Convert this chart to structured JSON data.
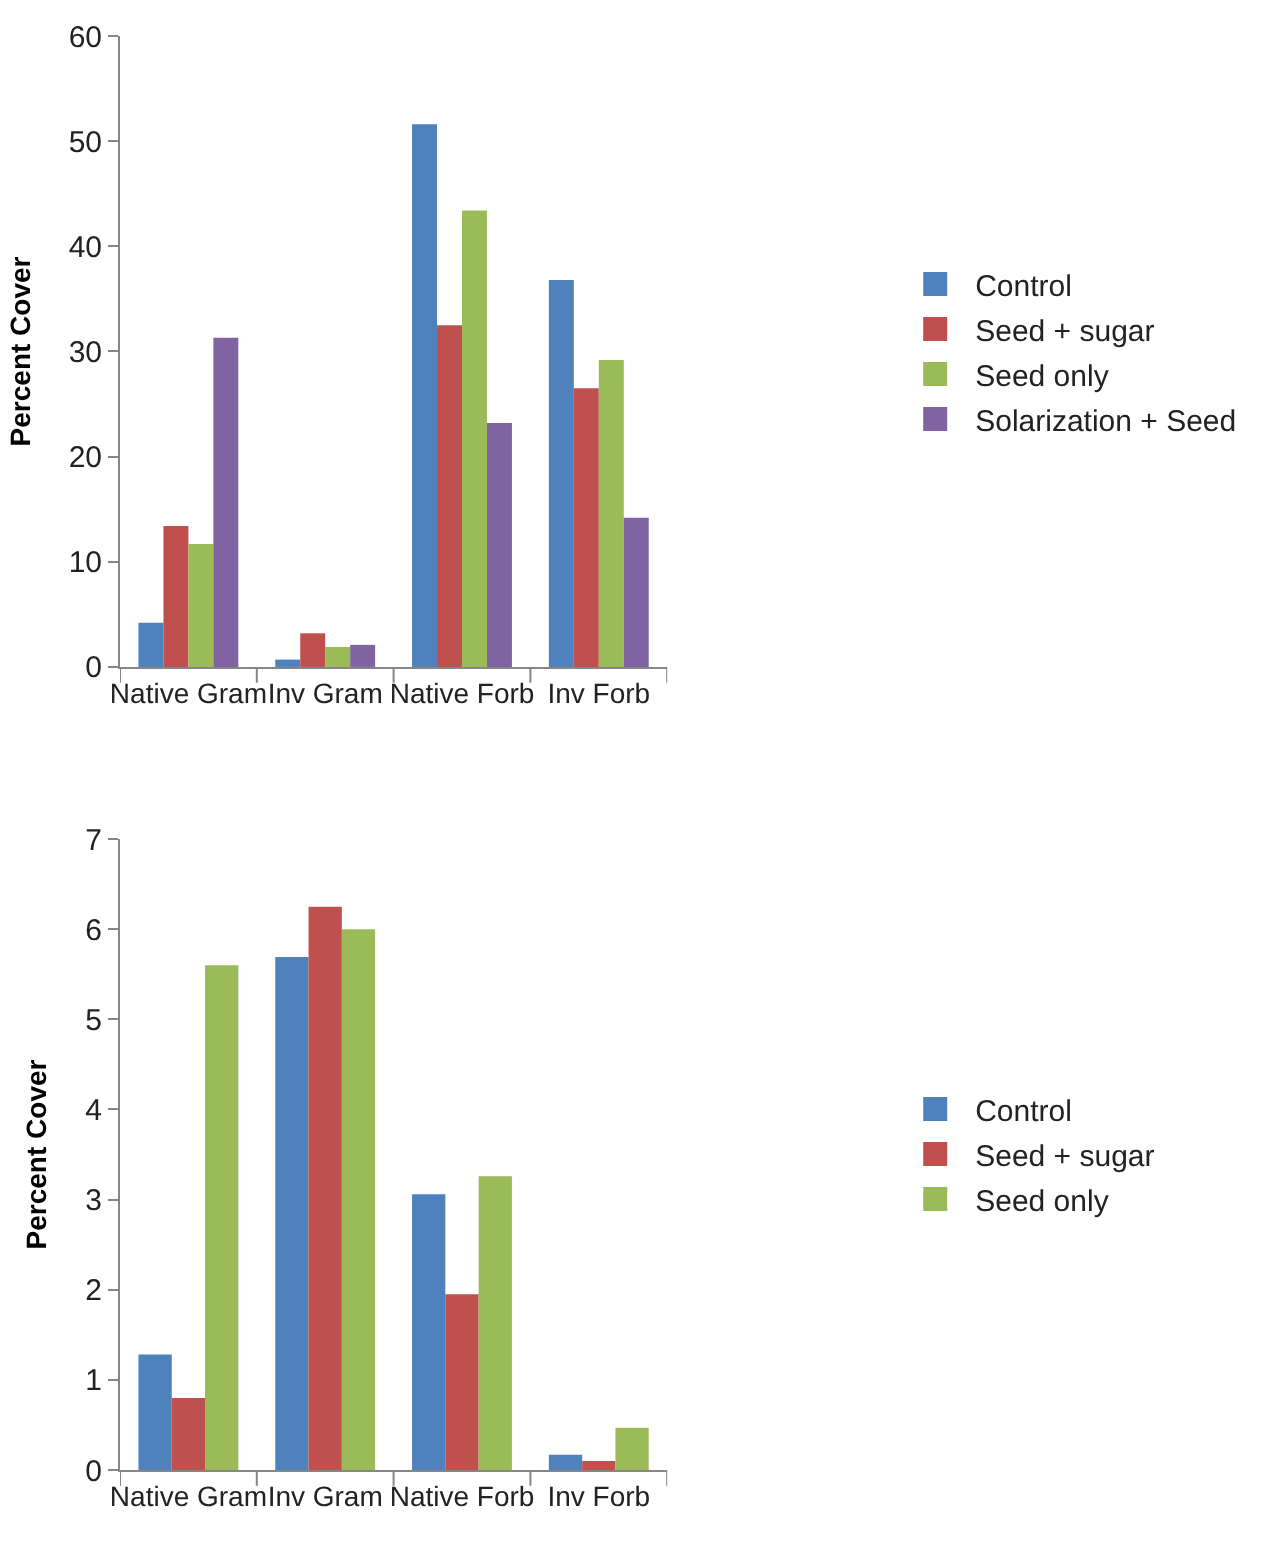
{
  "chart_data": [
    {
      "type": "bar",
      "ylabel": "Percent Cover",
      "categories": [
        "Native Gram",
        "Inv Gram",
        "Native Forb",
        "Inv Forb"
      ],
      "ylim": [
        0,
        60
      ],
      "yticks": [
        0,
        10,
        20,
        30,
        40,
        50,
        60
      ],
      "legend": "right",
      "series": [
        {
          "name": "Control",
          "color": "#4f81bd",
          "values": [
            4.2,
            0.7,
            51.6,
            36.8
          ]
        },
        {
          "name": "Seed + sugar",
          "color": "#c0504d",
          "values": [
            13.4,
            3.2,
            32.5,
            26.5
          ]
        },
        {
          "name": "Seed only",
          "color": "#9bbb59",
          "values": [
            11.7,
            1.9,
            43.4,
            29.2
          ]
        },
        {
          "name": "Solarization + Seed",
          "color": "#8064a2",
          "values": [
            31.3,
            2.1,
            23.2,
            14.2
          ]
        }
      ]
    },
    {
      "type": "bar",
      "ylabel": "Percent Cover",
      "categories": [
        "Native Gram",
        "Inv Gram",
        "Native Forb",
        "Inv Forb"
      ],
      "ylim": [
        0,
        7
      ],
      "yticks": [
        0,
        1,
        2,
        3,
        4,
        5,
        6,
        7
      ],
      "legend": "right",
      "series": [
        {
          "name": "Control",
          "color": "#4f81bd",
          "values": [
            1.28,
            5.69,
            3.06,
            0.17
          ]
        },
        {
          "name": "Seed + sugar",
          "color": "#c0504d",
          "values": [
            0.8,
            6.25,
            1.95,
            0.1
          ]
        },
        {
          "name": "Seed only",
          "color": "#9bbb59",
          "values": [
            5.6,
            6.0,
            3.26,
            0.47
          ]
        }
      ]
    }
  ]
}
